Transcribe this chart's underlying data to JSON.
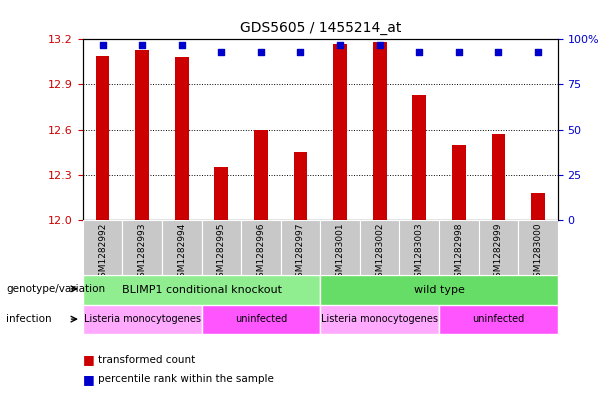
{
  "title": "GDS5605 / 1455214_at",
  "samples": [
    "GSM1282992",
    "GSM1282993",
    "GSM1282994",
    "GSM1282995",
    "GSM1282996",
    "GSM1282997",
    "GSM1283001",
    "GSM1283002",
    "GSM1283003",
    "GSM1282998",
    "GSM1282999",
    "GSM1283000"
  ],
  "red_values": [
    13.09,
    13.13,
    13.08,
    12.35,
    12.6,
    12.45,
    13.17,
    13.18,
    12.83,
    12.5,
    12.57,
    12.18
  ],
  "blue_values": [
    97,
    97,
    97,
    93,
    93,
    93,
    97,
    97,
    93,
    93,
    93,
    93
  ],
  "ylim_left": [
    12,
    13.2
  ],
  "ylim_right": [
    0,
    100
  ],
  "yticks_left": [
    12,
    12.3,
    12.6,
    12.9,
    13.2
  ],
  "yticks_right": [
    0,
    25,
    50,
    75,
    100
  ],
  "bar_color": "#cc0000",
  "dot_color": "#0000cc",
  "left_tick_color": "#cc0000",
  "right_tick_color": "#0000cc",
  "xtick_bg_color": "#c8c8c8",
  "genotype_groups": [
    {
      "label": "BLIMP1 conditional knockout",
      "start": 0,
      "end": 6,
      "color": "#90ee90"
    },
    {
      "label": "wild type",
      "start": 6,
      "end": 12,
      "color": "#66dd66"
    }
  ],
  "infection_groups": [
    {
      "label": "Listeria monocytogenes",
      "start": 0,
      "end": 3,
      "color": "#ffaaff"
    },
    {
      "label": "uninfected",
      "start": 3,
      "end": 6,
      "color": "#ff55ff"
    },
    {
      "label": "Listeria monocytogenes",
      "start": 6,
      "end": 9,
      "color": "#ffaaff"
    },
    {
      "label": "uninfected",
      "start": 9,
      "end": 12,
      "color": "#ff55ff"
    }
  ],
  "legend_items": [
    {
      "color": "#cc0000",
      "label": "transformed count"
    },
    {
      "color": "#0000cc",
      "label": "percentile rank within the sample"
    }
  ],
  "left_label": "genotype/variation",
  "infection_label": "infection"
}
